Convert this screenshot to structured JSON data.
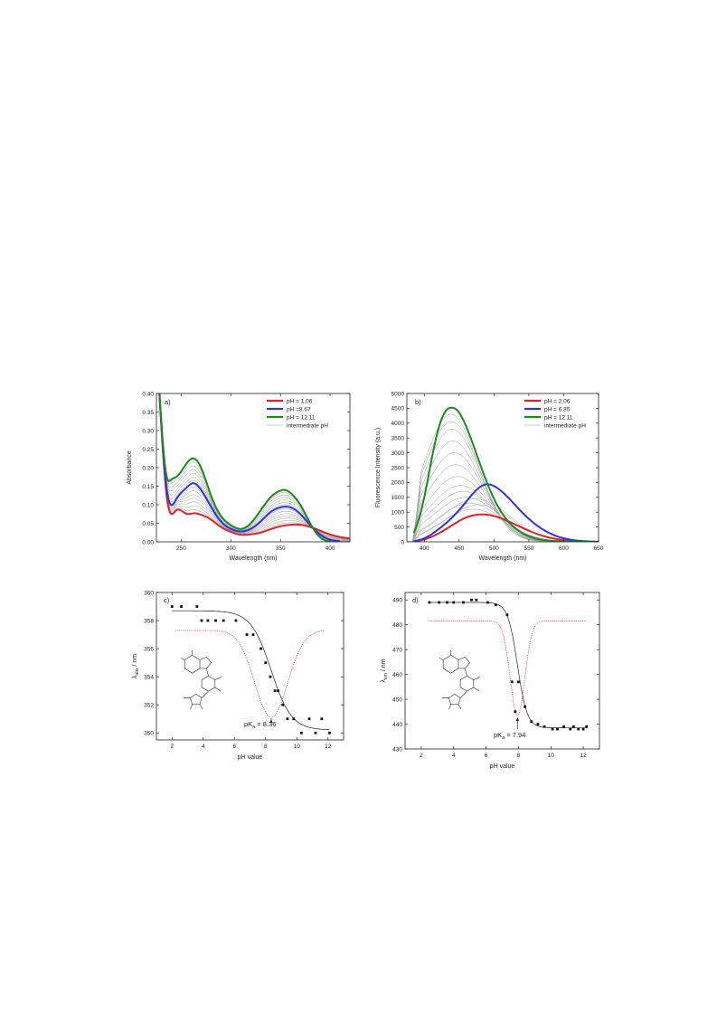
{
  "panels": {
    "a": {
      "label": "a)",
      "xlabel": "Wavelength (nm)",
      "ylabel": "Absorbance",
      "xticks": [
        250,
        300,
        350,
        400
      ],
      "yticks": [
        "0.00",
        "0.05",
        "0.10",
        "0.15",
        "0.20",
        "0.25",
        "0.30",
        "0.35",
        "0.40"
      ],
      "legend": [
        "pH = 1.06",
        "pH =8.67",
        "pH = 12.11",
        "intermediate pH"
      ]
    },
    "b": {
      "label": "b)",
      "xlabel": "Wavelength (nm)",
      "ylabel": "Fluorescence Intensity (a.u.)",
      "xticks": [
        400,
        450,
        500,
        550,
        600,
        650
      ],
      "yticks": [
        "0",
        "500",
        "1000",
        "1500",
        "2000",
        "2500",
        "3000",
        "3500",
        "4000",
        "4500",
        "5000"
      ],
      "legend": [
        "pH = 2.06",
        "pH = 6.85",
        "pH = 12.11",
        "intermediate pH"
      ]
    },
    "c": {
      "label": "c)",
      "xlabel": "pH value",
      "ylabel_main": "λ",
      "ylabel_sub": "abs",
      "ylabel_unit": " / nm",
      "xticks": [
        2,
        4,
        6,
        8,
        10,
        12
      ],
      "yticks": [
        350,
        352,
        354,
        356,
        358,
        360
      ],
      "pka_prefix": "pK",
      "pka_sub": "a",
      "pka_value": " = 8.36"
    },
    "d": {
      "label": "d)",
      "xlabel": "pH value",
      "ylabel_main": "λ",
      "ylabel_sub": "em",
      "ylabel_unit": " / nm",
      "xticks": [
        2,
        4,
        6,
        8,
        10,
        12
      ],
      "yticks": [
        430,
        440,
        450,
        460,
        470,
        480,
        490
      ],
      "pka_prefix": "pK",
      "pka_sub": "a",
      "pka_value": " = 7.94"
    }
  },
  "colors": {
    "red": "#e32226",
    "blue": "#2f35d6",
    "green": "#1c8a1c",
    "gray": "#9a9a9a",
    "axis": "#222222"
  },
  "chart_data": [
    {
      "id": "a",
      "type": "line",
      "xlabel": "Wavelength (nm)",
      "ylabel": "Absorbance",
      "xlim": [
        225,
        420
      ],
      "ylim": [
        0,
        0.4
      ],
      "grid": false,
      "legend_position": "top-right",
      "series": [
        {
          "name": "pH = 1.06",
          "color": "red",
          "x": [
            228,
            235,
            245,
            255,
            262,
            270,
            280,
            290,
            300,
            310,
            320,
            330,
            340,
            350,
            360,
            370,
            380,
            390,
            400,
            410,
            420
          ],
          "y": [
            0.4,
            0.13,
            0.085,
            0.076,
            0.077,
            0.073,
            0.06,
            0.04,
            0.027,
            0.019,
            0.02,
            0.025,
            0.034,
            0.042,
            0.046,
            0.046,
            0.04,
            0.03,
            0.02,
            0.013,
            0.009
          ]
        },
        {
          "name": "pH =8.67",
          "color": "blue",
          "x": [
            228,
            235,
            245,
            255,
            262,
            270,
            280,
            290,
            300,
            310,
            320,
            330,
            340,
            350,
            355,
            360,
            370,
            380,
            390,
            400,
            410
          ],
          "y": [
            0.4,
            0.15,
            0.115,
            0.145,
            0.158,
            0.14,
            0.095,
            0.055,
            0.035,
            0.028,
            0.035,
            0.055,
            0.08,
            0.093,
            0.095,
            0.093,
            0.075,
            0.045,
            0.02,
            0.006,
            0.002
          ]
        },
        {
          "name": "pH = 12.11",
          "color": "green",
          "x": [
            228,
            235,
            240,
            245,
            255,
            262,
            270,
            280,
            290,
            300,
            310,
            320,
            330,
            340,
            350,
            355,
            360,
            370,
            380,
            390,
            395,
            400
          ],
          "y": [
            0.4,
            0.18,
            0.168,
            0.175,
            0.21,
            0.225,
            0.2,
            0.125,
            0.07,
            0.045,
            0.035,
            0.05,
            0.085,
            0.12,
            0.138,
            0.14,
            0.132,
            0.1,
            0.05,
            0.012,
            0.004,
            0.0
          ]
        }
      ]
    },
    {
      "id": "b",
      "type": "line",
      "xlabel": "Wavelength (nm)",
      "ylabel": "Fluorescence Intensity (a.u.)",
      "xlim": [
        375,
        650
      ],
      "ylim": [
        0,
        5000
      ],
      "grid": false,
      "legend_position": "top-right",
      "series": [
        {
          "name": "pH = 2.06",
          "color": "red",
          "x": [
            385,
            400,
            420,
            440,
            460,
            480,
            500,
            520,
            540,
            560,
            580,
            600,
            620,
            640,
            650
          ],
          "y": [
            10,
            80,
            280,
            560,
            820,
            920,
            870,
            700,
            480,
            280,
            140,
            60,
            20,
            5,
            0
          ]
        },
        {
          "name": "pH = 6.85",
          "color": "blue",
          "x": [
            385,
            400,
            420,
            440,
            460,
            480,
            490,
            500,
            520,
            540,
            560,
            580,
            600,
            620,
            640,
            650
          ],
          "y": [
            20,
            120,
            420,
            820,
            1350,
            1850,
            1940,
            1880,
            1500,
            1000,
            580,
            290,
            120,
            40,
            10,
            0
          ]
        },
        {
          "name": "pH = 12.11",
          "color": "green",
          "x": [
            385,
            395,
            405,
            415,
            425,
            435,
            440,
            445,
            455,
            465,
            475,
            485,
            500,
            520,
            540,
            560,
            580,
            600,
            620,
            640
          ],
          "y": [
            300,
            1000,
            2100,
            3300,
            4150,
            4500,
            4520,
            4480,
            4150,
            3600,
            2950,
            2300,
            1450,
            700,
            300,
            110,
            40,
            10,
            0,
            0
          ]
        }
      ]
    },
    {
      "id": "c",
      "type": "scatter",
      "xlabel": "pH value",
      "ylabel": "λabs / nm",
      "xlim": [
        1,
        13
      ],
      "ylim": [
        349.5,
        360
      ],
      "grid": false,
      "series": [
        {
          "name": "",
          "color": "black",
          "x": [
            2.0,
            2.6,
            3.6,
            3.9,
            4.3,
            4.8,
            5.3,
            6.1,
            6.8,
            7.2,
            7.7,
            8.0,
            8.3,
            8.6,
            8.8,
            9.1,
            9.4,
            9.8,
            10.3,
            10.8,
            11.2,
            11.6,
            12.1
          ],
          "y": [
            359,
            359,
            359,
            358,
            358,
            358,
            358,
            358,
            357,
            357,
            356,
            355,
            354,
            353,
            353,
            352,
            351,
            351,
            350,
            351,
            350,
            351,
            350
          ]
        }
      ]
    },
    {
      "id": "d",
      "type": "scatter",
      "xlabel": "pH value",
      "ylabel": "λem / nm",
      "xlim": [
        1,
        13
      ],
      "ylim": [
        430,
        493
      ],
      "grid": false,
      "series": [
        {
          "name": "",
          "color": "black",
          "x": [
            2.5,
            3.1,
            3.6,
            4.0,
            4.6,
            5.1,
            5.4,
            6.1,
            6.6,
            7.3,
            7.6,
            7.8,
            8.0,
            8.4,
            8.8,
            9.2,
            9.6,
            10.1,
            10.4,
            10.8,
            11.2,
            11.4,
            11.7,
            12.0,
            12.2
          ],
          "y": [
            489,
            489,
            489,
            489,
            489,
            490,
            490,
            489,
            488,
            484,
            457,
            445,
            457,
            447,
            441,
            440,
            439,
            438,
            438,
            439,
            438,
            439,
            438,
            438,
            439
          ]
        }
      ]
    }
  ]
}
